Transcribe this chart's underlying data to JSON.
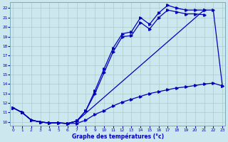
{
  "title": "Graphe des températures (°c)",
  "bg_color": "#cce8ee",
  "grid_color": "#aacccc",
  "line_color": "#0000bb",
  "x_ticks": [
    0,
    1,
    2,
    3,
    4,
    5,
    6,
    7,
    8,
    9,
    10,
    11,
    12,
    13,
    14,
    15,
    16,
    17,
    18,
    19,
    20,
    21,
    22,
    23
  ],
  "y_ticks": [
    10,
    11,
    12,
    13,
    14,
    15,
    16,
    17,
    18,
    19,
    20,
    21,
    22
  ],
  "xlim": [
    -0.3,
    23.3
  ],
  "ylim": [
    9.6,
    22.6
  ],
  "curve1_x": [
    0,
    1,
    2,
    3,
    4,
    5,
    6,
    7,
    8,
    9,
    10,
    11,
    12,
    13,
    14,
    15,
    16,
    17,
    18,
    19,
    20,
    21
  ],
  "curve1_y": [
    11.5,
    11.0,
    10.2,
    10.0,
    9.9,
    9.9,
    9.85,
    10.1,
    11.2,
    13.3,
    15.6,
    17.8,
    19.3,
    19.5,
    21.0,
    20.3,
    21.5,
    22.3,
    22.0,
    21.8,
    21.8,
    21.8
  ],
  "curve2_x": [
    0,
    1,
    2,
    3,
    4,
    5,
    6,
    7,
    8,
    9,
    10,
    11,
    12,
    13,
    14,
    15,
    16,
    17,
    18,
    19,
    20,
    21
  ],
  "curve2_y": [
    11.5,
    11.0,
    10.2,
    10.0,
    9.9,
    9.9,
    9.85,
    10.1,
    11.2,
    13.0,
    15.2,
    17.4,
    19.0,
    19.1,
    20.5,
    19.8,
    21.0,
    21.8,
    21.6,
    21.4,
    21.4,
    21.3
  ],
  "envelope_x": [
    0,
    1,
    2,
    3,
    4,
    5,
    6,
    7,
    21,
    22,
    23
  ],
  "envelope_y": [
    11.5,
    11.0,
    10.2,
    10.0,
    9.9,
    9.9,
    9.85,
    10.1,
    21.8,
    21.8,
    13.8
  ],
  "minline_x": [
    0,
    1,
    2,
    3,
    4,
    5,
    6,
    7,
    8,
    9,
    10,
    11,
    12,
    13,
    14,
    15,
    16,
    17,
    18,
    19,
    20,
    21,
    22,
    23
  ],
  "minline_y": [
    11.5,
    11.0,
    10.2,
    10.0,
    9.9,
    9.9,
    9.85,
    9.85,
    10.2,
    10.8,
    11.2,
    11.7,
    12.1,
    12.4,
    12.7,
    13.0,
    13.2,
    13.4,
    13.6,
    13.7,
    13.85,
    14.0,
    14.1,
    13.8
  ]
}
